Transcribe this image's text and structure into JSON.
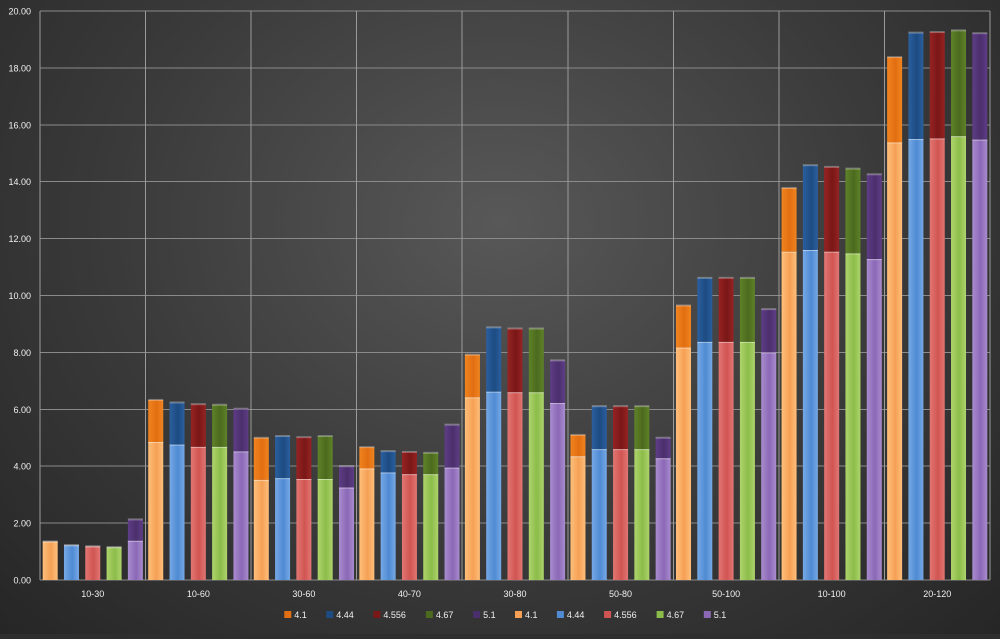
{
  "chart_data": {
    "type": "bar",
    "stacked": true,
    "title": "",
    "xlabel": "",
    "ylabel": "",
    "ylim": [
      0,
      20
    ],
    "y_tick_step": 2,
    "y_tick_format": "0.00",
    "grid": true,
    "legend_position": "bottom",
    "categories": [
      "10-30",
      "10-60",
      "30-60",
      "40-70",
      "30-80",
      "50-80",
      "50-100",
      "10-100",
      "20-120"
    ],
    "bottom_series": [
      {
        "name": "4.1",
        "color_top": "#f5a055",
        "color_bottom": "#ffbf7a",
        "values": [
          1.35,
          4.85,
          3.52,
          3.92,
          6.42,
          4.35,
          8.17,
          11.54,
          15.38
        ]
      },
      {
        "name": "4.44",
        "color_top": "#4f8ad2",
        "color_bottom": "#76a9e6",
        "values": [
          1.22,
          4.76,
          3.58,
          3.78,
          6.62,
          4.6,
          8.37,
          11.6,
          15.5
        ]
      },
      {
        "name": "4.556",
        "color_top": "#d05552",
        "color_bottom": "#e27673",
        "values": [
          1.18,
          4.68,
          3.55,
          3.72,
          6.6,
          4.6,
          8.37,
          11.54,
          15.52
        ]
      },
      {
        "name": "4.67",
        "color_top": "#8cbc4a",
        "color_bottom": "#aed46c",
        "values": [
          1.15,
          4.68,
          3.55,
          3.72,
          6.6,
          4.6,
          8.37,
          11.48,
          15.6
        ]
      },
      {
        "name": "5.1",
        "color_top": "#8b68b6",
        "color_bottom": "#a98ccf",
        "values": [
          1.38,
          4.52,
          3.25,
          3.95,
          6.22,
          4.28,
          8.0,
          11.28,
          15.48
        ]
      }
    ],
    "top_series": [
      {
        "name": "4.1",
        "color_top": "#e26e12",
        "color_bottom": "#f0841f",
        "values": [
          0.0,
          1.48,
          1.48,
          0.75,
          1.5,
          0.75,
          1.48,
          2.24,
          3.0
        ]
      },
      {
        "name": "4.44",
        "color_top": "#1d4b82",
        "color_bottom": "#2a5f9e",
        "values": [
          0.0,
          1.48,
          1.48,
          0.75,
          2.26,
          1.51,
          2.25,
          2.98,
          3.74
        ]
      },
      {
        "name": "4.556",
        "color_top": "#7a1717",
        "color_bottom": "#962323",
        "values": [
          0.0,
          1.5,
          1.47,
          0.78,
          2.24,
          1.51,
          2.25,
          2.98,
          3.74
        ]
      },
      {
        "name": "4.67",
        "color_top": "#4c6a1e",
        "color_bottom": "#5e8228",
        "values": [
          0.0,
          1.48,
          1.51,
          0.75,
          2.24,
          1.51,
          2.25,
          2.98,
          3.72
        ]
      },
      {
        "name": "5.1",
        "color_top": "#4b2f6c",
        "color_bottom": "#5e3d86",
        "values": [
          0.75,
          1.5,
          0.75,
          1.51,
          1.5,
          0.72,
          1.52,
          2.98,
          3.74
        ]
      }
    ],
    "legend": [
      {
        "label": "4.1",
        "color": "#e26e12"
      },
      {
        "label": "4.44",
        "color": "#1d4b82"
      },
      {
        "label": "4.556",
        "color": "#7a1717"
      },
      {
        "label": "4.67",
        "color": "#4c6a1e"
      },
      {
        "label": "5.1",
        "color": "#4b2f6c"
      },
      {
        "label": "4.1",
        "color": "#f5a055"
      },
      {
        "label": "4.44",
        "color": "#4f8ad2"
      },
      {
        "label": "4.556",
        "color": "#d05552"
      },
      {
        "label": "4.67",
        "color": "#8cbc4a"
      },
      {
        "label": "5.1",
        "color": "#8b68b6"
      }
    ],
    "colors": {
      "grid": "#8a8a8a",
      "grid_vertical": "#9a9a9a",
      "axis_text": "#f0f0f0",
      "cap_highlight": "#ffffff"
    }
  }
}
